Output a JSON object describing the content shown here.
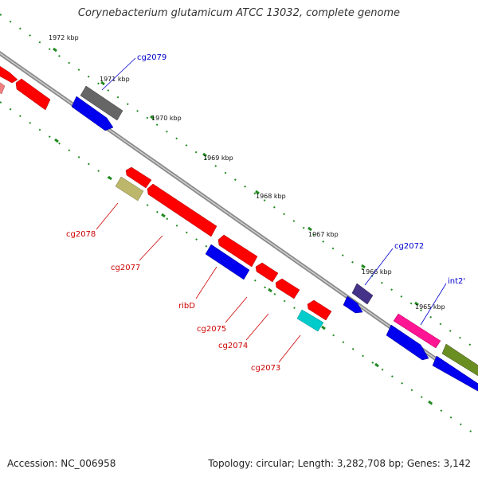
{
  "title": "Corynebacterium glutamicum ATCC 13032, complete genome",
  "footer": {
    "accession": "Accession: NC_006958",
    "info": "Topology: circular; Length: 3,282,708 bp; Genes: 3,142"
  },
  "colors": {
    "backbone": "#888888",
    "tick": "#228B22",
    "fwd_label": "#0000cc",
    "rev_label": "#cc0000"
  },
  "scale_labels": [
    "1972 kbp",
    "1971 kbp",
    "1970 kbp",
    "1969 kbp",
    "1968 kbp",
    "1967 kbp",
    "1966 kbp",
    "1965 kbp"
  ],
  "genes": [
    {
      "name": "cg2079",
      "strand": "+",
      "color": "#666666"
    },
    {
      "name": "cg2078",
      "strand": "-",
      "color": "#bdb76b"
    },
    {
      "name": "cg2077",
      "strand": "-",
      "color": "#ff0000"
    },
    {
      "name": "ribD",
      "strand": "-",
      "color": "#0000ee"
    },
    {
      "name": "cg2075",
      "strand": "-",
      "color": "#ff0000"
    },
    {
      "name": "cg2074",
      "strand": "-",
      "color": "#ff0000"
    },
    {
      "name": "cg2073",
      "strand": "-",
      "color": "#00cccc"
    },
    {
      "name": "cg2072",
      "strand": "+",
      "color": "#443388"
    },
    {
      "name": "int2'",
      "strand": "+",
      "color": "#ff1493"
    }
  ]
}
